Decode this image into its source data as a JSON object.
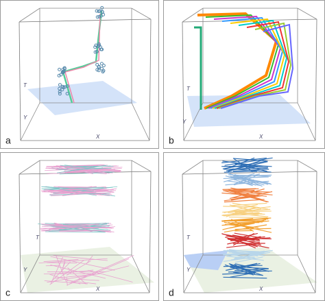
{
  "panels": [
    {
      "label": "a",
      "axes": {
        "t": "T",
        "y": "Y",
        "x": "X"
      }
    },
    {
      "label": "b",
      "axes": {
        "t": "T",
        "y": "Y",
        "x": "X"
      }
    },
    {
      "label": "c",
      "axes": {
        "t": "T",
        "y": "Y",
        "x": "X"
      }
    },
    {
      "label": "d",
      "axes": {
        "t": "T",
        "y": "Y",
        "x": "X"
      }
    }
  ]
}
